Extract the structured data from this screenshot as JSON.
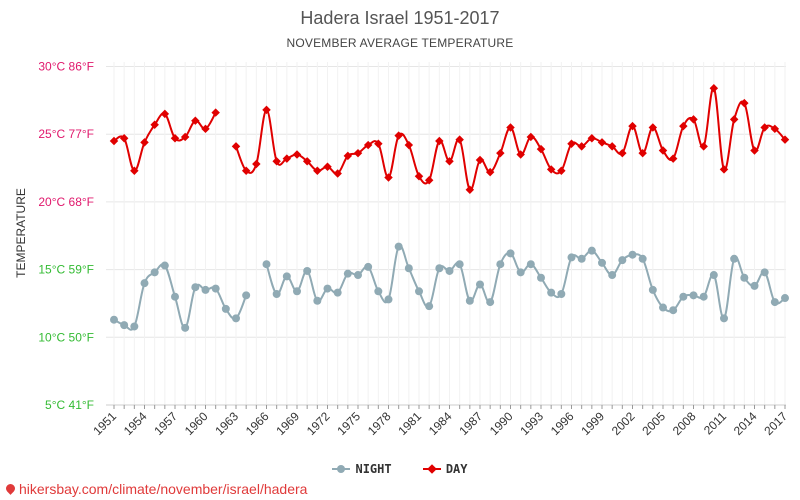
{
  "header": {
    "title": "Hadera Israel 1951-2017",
    "subtitle": "NOVEMBER AVERAGE TEMPERATURE"
  },
  "watermark": "hikersbay.com/climate/november/israel/hadera",
  "colors": {
    "day": "#e00000",
    "night": "#90aab4",
    "ytick_day_range": "#e0186c",
    "ytick_night_range": "#33bb33",
    "grid": "#e6e6e6",
    "axis_text": "#333333"
  },
  "chart_data": {
    "type": "line",
    "ylabel": "TEMPERATURE",
    "ylim": [
      5,
      31
    ],
    "grid": true,
    "legend_position": "bottom-center",
    "y_ticks": [
      {
        "value": 5,
        "label": "5°C 41°F"
      },
      {
        "value": 10,
        "label": "10°C 50°F"
      },
      {
        "value": 15,
        "label": "15°C 59°F"
      },
      {
        "value": 20,
        "label": "20°C 68°F"
      },
      {
        "value": 25,
        "label": "25°C 77°F"
      },
      {
        "value": 30,
        "label": "30°C 86°F"
      }
    ],
    "x_tick_labels": [
      "1951",
      "1954",
      "1957",
      "1960",
      "1963",
      "1966",
      "1969",
      "1972",
      "1975",
      "1978",
      "1981",
      "1984",
      "1987",
      "1990",
      "1993",
      "1996",
      "1999",
      "2002",
      "2005",
      "2008",
      "2011",
      "2014",
      "2017"
    ],
    "x": [
      1951,
      1952,
      1953,
      1954,
      1955,
      1956,
      1957,
      1958,
      1959,
      1960,
      1961,
      1962,
      1963,
      1964,
      1965,
      1966,
      1967,
      1968,
      1969,
      1970,
      1971,
      1972,
      1973,
      1974,
      1975,
      1976,
      1977,
      1978,
      1979,
      1980,
      1981,
      1982,
      1983,
      1984,
      1985,
      1986,
      1987,
      1988,
      1989,
      1990,
      1991,
      1992,
      1993,
      1994,
      1995,
      1996,
      1997,
      1998,
      1999,
      2000,
      2001,
      2002,
      2003,
      2004,
      2005,
      2006,
      2007,
      2008,
      2009,
      2010,
      2011,
      2012,
      2013,
      2014,
      2015,
      2016,
      2017
    ],
    "series": [
      {
        "name": "NIGHT",
        "color": "#90aab4",
        "values": [
          11.3,
          10.9,
          10.8,
          14.0,
          14.8,
          15.3,
          13.0,
          10.7,
          13.7,
          13.5,
          13.6,
          12.1,
          11.4,
          13.1,
          null,
          15.4,
          13.2,
          14.5,
          13.4,
          14.9,
          12.7,
          13.6,
          13.3,
          14.7,
          14.6,
          15.2,
          13.4,
          12.8,
          16.7,
          15.1,
          13.4,
          12.3,
          15.1,
          14.9,
          15.4,
          12.7,
          13.9,
          12.6,
          15.4,
          16.2,
          14.8,
          15.4,
          14.4,
          13.3,
          13.2,
          15.9,
          15.8,
          16.4,
          15.5,
          14.6,
          15.7,
          16.1,
          15.8,
          13.5,
          12.2,
          12.0,
          13.0,
          13.1,
          13.0,
          14.6,
          11.4,
          15.8,
          14.4,
          13.8,
          14.8,
          12.6,
          12.9
        ]
      },
      {
        "name": "DAY",
        "color": "#e00000",
        "values": [
          24.5,
          24.7,
          22.3,
          24.4,
          25.7,
          26.5,
          24.7,
          24.8,
          26.0,
          25.4,
          26.6,
          null,
          24.1,
          22.3,
          22.8,
          26.8,
          23.0,
          23.2,
          23.5,
          23.0,
          22.3,
          22.6,
          22.1,
          23.4,
          23.6,
          24.2,
          24.3,
          21.8,
          24.9,
          24.2,
          21.9,
          21.6,
          24.5,
          23.0,
          24.6,
          20.9,
          23.1,
          22.2,
          23.6,
          25.5,
          23.5,
          24.8,
          23.9,
          22.4,
          22.3,
          24.3,
          24.1,
          24.7,
          24.4,
          24.1,
          23.6,
          25.6,
          23.6,
          25.5,
          23.8,
          23.2,
          25.6,
          26.1,
          24.1,
          28.4,
          22.4,
          26.1,
          27.3,
          23.8,
          25.5,
          25.4,
          24.6
        ]
      }
    ]
  }
}
